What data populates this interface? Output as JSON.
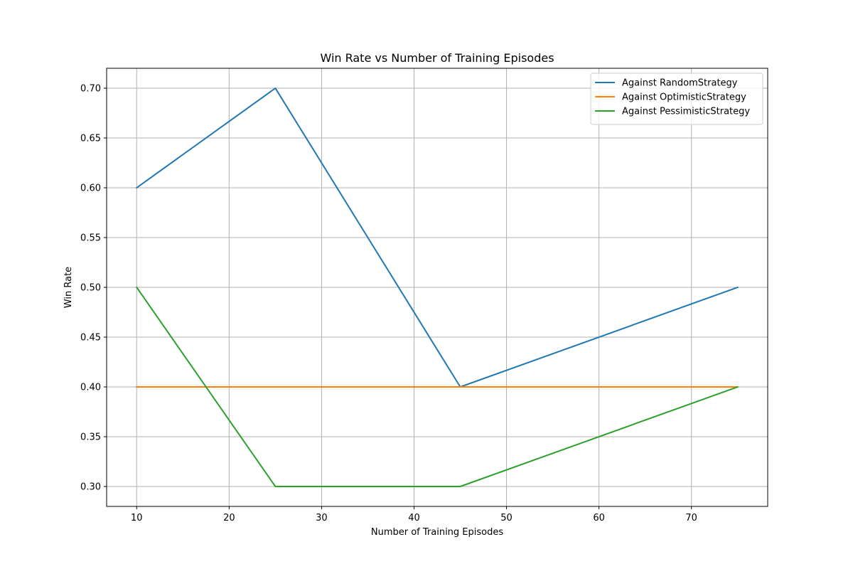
{
  "chart_data": {
    "type": "line",
    "title": "Win Rate vs Number of Training Episodes",
    "xlabel": "Number of Training Episodes",
    "ylabel": "Win Rate",
    "x": [
      10,
      25,
      45,
      75
    ],
    "xlim": [
      6.75,
      78.25
    ],
    "ylim": [
      0.28,
      0.72
    ],
    "xticks": [
      10,
      20,
      30,
      40,
      50,
      60,
      70
    ],
    "yticks": [
      0.3,
      0.35,
      0.4,
      0.45,
      0.5,
      0.55,
      0.6,
      0.65,
      0.7
    ],
    "grid": true,
    "legend_position": "top-right",
    "series": [
      {
        "name": "Against RandomStrategy",
        "color": "#1f77b4",
        "values": [
          0.6,
          0.7,
          0.4,
          0.5
        ]
      },
      {
        "name": "Against OptimisticStrategy",
        "color": "#ff7f0e",
        "values": [
          0.4,
          0.4,
          0.4,
          0.4
        ]
      },
      {
        "name": "Against PessimisticStrategy",
        "color": "#2ca02c",
        "values": [
          0.5,
          0.3,
          0.3,
          0.4
        ]
      }
    ]
  }
}
